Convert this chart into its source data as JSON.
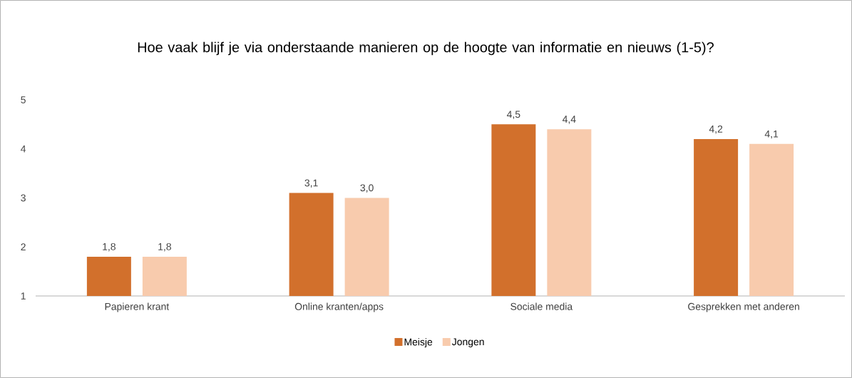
{
  "chart_data": {
    "type": "bar",
    "title": "Hoe vaak blijf je via onderstaande manieren op de hoogte van informatie en nieuws (1-5)?",
    "categories": [
      "Papieren krant",
      "Online kranten/apps",
      "Sociale media",
      "Gesprekken met anderen"
    ],
    "series": [
      {
        "name": "Meisje",
        "color": "#d2702c",
        "values": [
          1.8,
          3.1,
          4.5,
          4.2
        ],
        "value_labels": [
          "1,8",
          "3,1",
          "4,5",
          "4,2"
        ]
      },
      {
        "name": "Jongen",
        "color": "#f8cbad",
        "values": [
          1.8,
          3.0,
          4.4,
          4.1
        ],
        "value_labels": [
          "1,8",
          "3,0",
          "4,4",
          "4,1"
        ]
      }
    ],
    "ylim": [
      1,
      5
    ],
    "yticks": [
      1,
      2,
      3,
      4,
      5
    ],
    "grid": false,
    "legend": "bottom"
  }
}
